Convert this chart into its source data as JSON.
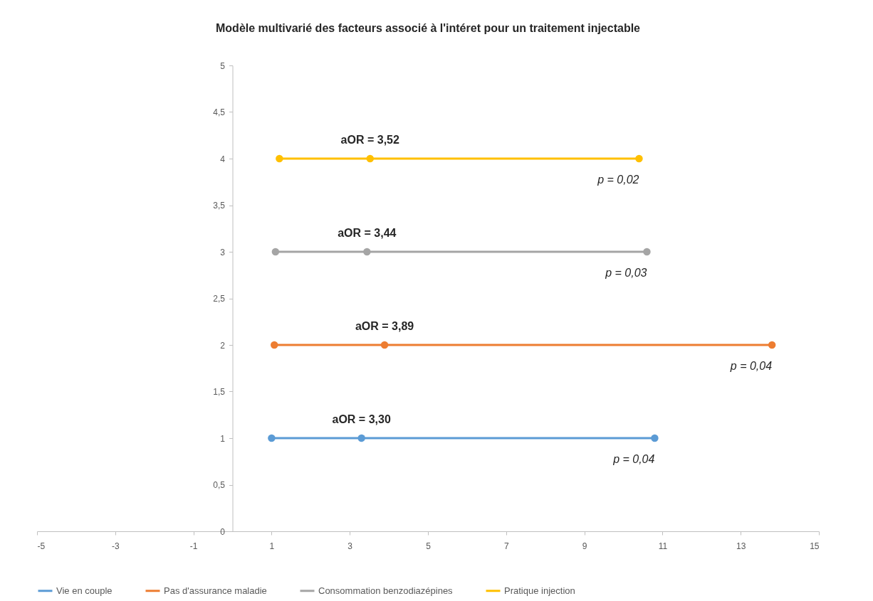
{
  "chart_data": {
    "type": "line",
    "title": "Modèle multivarié des facteurs associé à l'intéret pour un traitement injectable",
    "series": [
      {
        "name": "Vie en couple",
        "color": "#5b9bd5",
        "x": [
          1.0,
          3.3,
          10.8
        ],
        "values": [
          1,
          1,
          1
        ]
      },
      {
        "name": "Pas d'assurance maladie",
        "color": "#ed7d31",
        "x": [
          1.07,
          3.89,
          13.8
        ],
        "values": [
          2,
          2,
          2
        ]
      },
      {
        "name": "Consommation benzodiazépines",
        "color": "#a5a5a5",
        "x": [
          1.1,
          3.44,
          10.6
        ],
        "values": [
          3,
          3,
          3
        ]
      },
      {
        "name": "Pratique injection",
        "color": "#ffc000",
        "x": [
          1.2,
          3.52,
          10.4
        ],
        "values": [
          4,
          4,
          4
        ]
      }
    ],
    "annotations": [
      {
        "text": "aOR = 3,30",
        "x": 3.3,
        "y": 1
      },
      {
        "text": "p = 0,04",
        "x": 10.8,
        "y": 1
      },
      {
        "text": "aOR = 3,89",
        "x": 3.89,
        "y": 2
      },
      {
        "text": "p = 0,04",
        "x": 13.8,
        "y": 2
      },
      {
        "text": "aOR = 3,44",
        "x": 3.44,
        "y": 3
      },
      {
        "text": "p = 0,03",
        "x": 10.6,
        "y": 3
      },
      {
        "text": "aOR = 3,52",
        "x": 3.52,
        "y": 4
      },
      {
        "text": "p = 0,02",
        "x": 10.4,
        "y": 4
      }
    ],
    "xlim": [
      -5,
      15
    ],
    "xticks": [
      -5,
      -3,
      -1,
      1,
      3,
      5,
      7,
      9,
      11,
      13,
      15
    ],
    "ylim": [
      0,
      5
    ],
    "yticks": [
      0,
      {
        "value": 0.5,
        "label": "0,5"
      },
      1,
      {
        "value": 1.5,
        "label": "1,5"
      },
      2,
      {
        "value": 2.5,
        "label": "2,5"
      },
      3,
      {
        "value": 3.5,
        "label": "3,5"
      },
      4,
      {
        "value": 4.5,
        "label": "4,5"
      },
      5
    ],
    "marker": "circle",
    "line_style": "solid",
    "legend": "bottom",
    "grid": false
  }
}
